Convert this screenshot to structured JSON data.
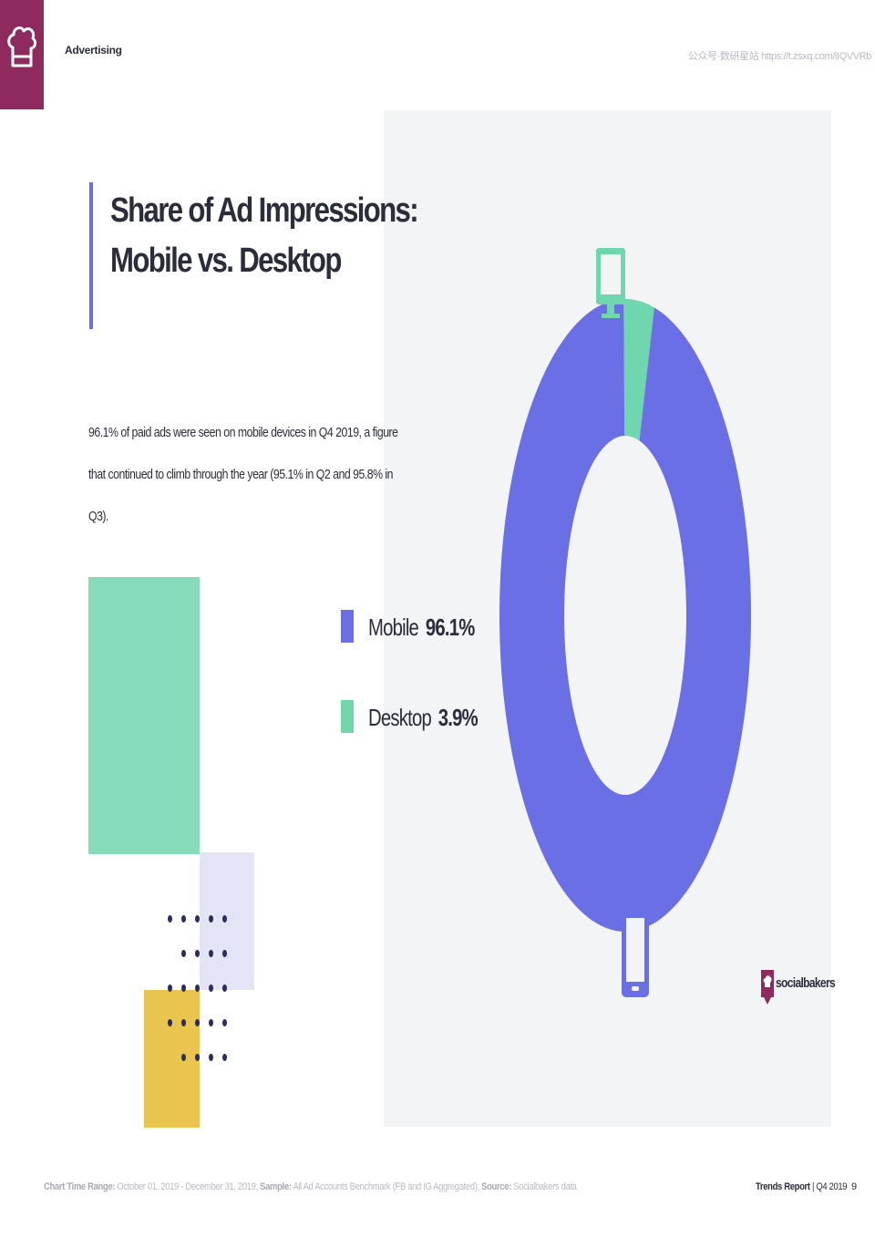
{
  "header": {
    "section": "Advertising",
    "note": "公众号·数研星站 https://t.zsxq.com/iIQVVRb"
  },
  "title": {
    "line1": "Share of Ad Impressions:",
    "line2": "Mobile vs. Desktop"
  },
  "description": "96.1% of paid ads were seen on mobile devices in Q4 2019, a figure that continued to climb through the year (95.1% in Q2 and 95.8% in Q3).",
  "legend": [
    {
      "label": "Mobile",
      "value": "96.1%",
      "color": "#6b6fe6"
    },
    {
      "label": "Desktop",
      "value": "3.9%",
      "color": "#6fd6ae"
    }
  ],
  "icons": {
    "desktop": "desktop-monitor-icon",
    "mobile": "smartphone-icon",
    "brand": "chef-hat-icon"
  },
  "chart_data": {
    "type": "pie",
    "style": "donut",
    "categories": [
      "Mobile",
      "Desktop"
    ],
    "values": [
      96.1,
      3.9
    ],
    "colors": [
      "#6b6fe6",
      "#6fd6ae"
    ],
    "title": "Share of Ad Impressions: Mobile vs. Desktop"
  },
  "brand": {
    "name": "socialbakers"
  },
  "footer": {
    "range_label": "Chart Time Range:",
    "range_value": "October 01, 2019 - December 31, 2019;",
    "sample_label": "Sample:",
    "sample_value": "All Ad Accounts Benchmark (FB and IG Aggregated);",
    "source_label": "Source:",
    "source_value": "Socialbakers data",
    "report_label": "Trends Report",
    "report_period": "| Q4 2019",
    "page": "9"
  },
  "colors": {
    "brand": "#8e2a5e",
    "mobile": "#6b6fe6",
    "desktop": "#6fd6ae",
    "panel": "#f3f4f6"
  }
}
